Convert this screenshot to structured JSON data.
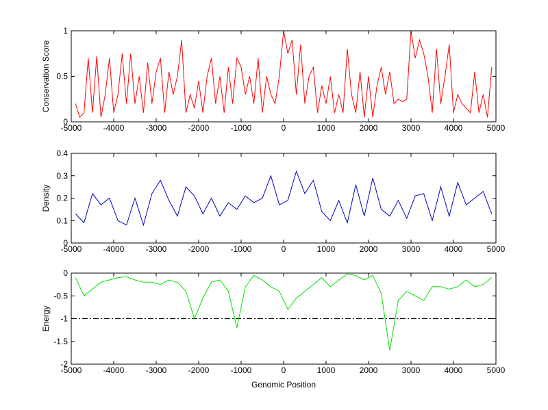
{
  "chart_data": [
    {
      "type": "line",
      "ylabel": "Conservation Score",
      "x": [
        -4900,
        -4800,
        -4700,
        -4600,
        -4500,
        -4400,
        -4300,
        -4200,
        -4100,
        -4000,
        -3900,
        -3800,
        -3700,
        -3600,
        -3500,
        -3400,
        -3300,
        -3200,
        -3100,
        -3000,
        -2900,
        -2800,
        -2700,
        -2600,
        -2500,
        -2400,
        -2300,
        -2200,
        -2100,
        -2000,
        -1900,
        -1800,
        -1700,
        -1600,
        -1500,
        -1400,
        -1300,
        -1200,
        -1100,
        -1000,
        -900,
        -800,
        -700,
        -600,
        -500,
        -400,
        -300,
        -200,
        -100,
        0,
        100,
        200,
        300,
        400,
        500,
        600,
        700,
        800,
        900,
        1000,
        1100,
        1200,
        1300,
        1400,
        1500,
        1600,
        1700,
        1800,
        1900,
        2000,
        2100,
        2200,
        2300,
        2400,
        2500,
        2600,
        2700,
        2800,
        2900,
        3000,
        3100,
        3200,
        3300,
        3400,
        3500,
        3600,
        3700,
        3800,
        3900,
        4000,
        4100,
        4200,
        4300,
        4400,
        4500,
        4600,
        4700,
        4800,
        4900
      ],
      "series": [
        {
          "color": "#ff0000",
          "values": [
            0.2,
            0.05,
            0.1,
            0.7,
            0.1,
            0.72,
            0.05,
            0.3,
            0.7,
            0.1,
            0.3,
            0.75,
            0.2,
            0.75,
            0.2,
            0.5,
            0.1,
            0.65,
            0.2,
            0.55,
            0.7,
            0.1,
            0.55,
            0.3,
            0.5,
            0.9,
            0.1,
            0.3,
            0.15,
            0.45,
            0.1,
            0.5,
            0.7,
            0.2,
            0.5,
            0.1,
            0.6,
            0.2,
            0.7,
            0.6,
            0.3,
            0.5,
            0.2,
            0.7,
            0.1,
            0.5,
            0.3,
            0.2,
            0.5,
            1,
            0.75,
            0.9,
            0.3,
            0.85,
            0.2,
            0.5,
            0.6,
            0.1,
            0.4,
            0.2,
            0.5,
            0.1,
            0.3,
            0.1,
            0.8,
            0.3,
            0.1,
            0.55,
            0.05,
            0.5,
            0.05,
            0.4,
            0.6,
            0.3,
            0.55,
            0.2,
            0.25,
            0.22,
            0.25,
            1,
            0.7,
            0.9,
            0.75,
            0.5,
            0.1,
            0.8,
            0.2,
            0.5,
            0.85,
            0.1,
            0.3,
            0.2,
            0.15,
            0.1,
            0.55,
            0.1,
            0.3,
            0.05,
            0.6
          ]
        }
      ],
      "xlim": [
        -5000,
        5000
      ],
      "xticks": [
        -5000,
        -4000,
        -3000,
        -2000,
        -1000,
        0,
        1000,
        2000,
        3000,
        4000,
        5000
      ],
      "ylim": [
        0,
        1
      ],
      "yticks": [
        0,
        0.5,
        1
      ]
    },
    {
      "type": "line",
      "ylabel": "Density",
      "x": [
        -4900,
        -4700,
        -4500,
        -4300,
        -4100,
        -3900,
        -3700,
        -3500,
        -3300,
        -3100,
        -2900,
        -2700,
        -2500,
        -2300,
        -2100,
        -1900,
        -1700,
        -1500,
        -1300,
        -1100,
        -900,
        -700,
        -500,
        -300,
        -100,
        100,
        300,
        500,
        700,
        900,
        1100,
        1300,
        1500,
        1700,
        1900,
        2100,
        2300,
        2500,
        2700,
        2900,
        3100,
        3300,
        3500,
        3700,
        3900,
        4100,
        4300,
        4500,
        4700,
        4900
      ],
      "series": [
        {
          "color": "#0000c0",
          "values": [
            0.13,
            0.09,
            0.22,
            0.17,
            0.2,
            0.1,
            0.08,
            0.2,
            0.08,
            0.22,
            0.28,
            0.19,
            0.12,
            0.25,
            0.21,
            0.13,
            0.2,
            0.12,
            0.18,
            0.15,
            0.21,
            0.18,
            0.2,
            0.3,
            0.17,
            0.19,
            0.32,
            0.22,
            0.28,
            0.14,
            0.1,
            0.19,
            0.09,
            0.26,
            0.12,
            0.29,
            0.15,
            0.12,
            0.19,
            0.11,
            0.21,
            0.22,
            0.1,
            0.25,
            0.12,
            0.27,
            0.17,
            0.2,
            0.23,
            0.13
          ]
        }
      ],
      "xlim": [
        -5000,
        5000
      ],
      "xticks": [
        -5000,
        -4000,
        -3000,
        -2000,
        -1000,
        0,
        1000,
        2000,
        3000,
        4000,
        5000
      ],
      "ylim": [
        0,
        0.4
      ],
      "yticks": [
        0,
        0.1,
        0.2,
        0.3,
        0.4
      ]
    },
    {
      "type": "line",
      "ylabel": "Energy",
      "xlabel": "Genomic Position",
      "x": [
        -4900,
        -4700,
        -4500,
        -4300,
        -4100,
        -3900,
        -3700,
        -3500,
        -3300,
        -3100,
        -2900,
        -2700,
        -2500,
        -2300,
        -2100,
        -1900,
        -1700,
        -1500,
        -1300,
        -1100,
        -900,
        -700,
        -500,
        -300,
        -100,
        100,
        300,
        500,
        700,
        900,
        1100,
        1300,
        1500,
        1700,
        1900,
        2100,
        2300,
        2500,
        2700,
        2900,
        3100,
        3300,
        3500,
        3700,
        3900,
        4100,
        4300,
        4500,
        4700,
        4900
      ],
      "series": [
        {
          "color": "#00e000",
          "values": [
            -0.1,
            -0.5,
            -0.35,
            -0.2,
            -0.15,
            -0.1,
            -0.08,
            -0.15,
            -0.2,
            -0.2,
            -0.25,
            -0.15,
            -0.2,
            -0.4,
            -1,
            -0.55,
            -0.2,
            -0.15,
            -0.4,
            -1.2,
            -0.3,
            -0.05,
            -0.15,
            -0.3,
            -0.4,
            -0.8,
            -0.55,
            -0.4,
            -0.25,
            -0.1,
            -0.3,
            -0.15,
            -0.02,
            -0.05,
            -0.15,
            -0.05,
            -0.45,
            -1.7,
            -0.6,
            -0.4,
            -0.5,
            -0.6,
            -0.3,
            -0.3,
            -0.35,
            -0.3,
            -0.15,
            -0.3,
            -0.25,
            -0.1
          ]
        }
      ],
      "hline": -1,
      "xlim": [
        -5000,
        5000
      ],
      "xticks": [
        -5000,
        -4000,
        -3000,
        -2000,
        -1000,
        0,
        1000,
        2000,
        3000,
        4000,
        5000
      ],
      "ylim": [
        -2,
        0
      ],
      "yticks": [
        -2,
        -1.5,
        -1,
        -0.5,
        0
      ]
    }
  ]
}
